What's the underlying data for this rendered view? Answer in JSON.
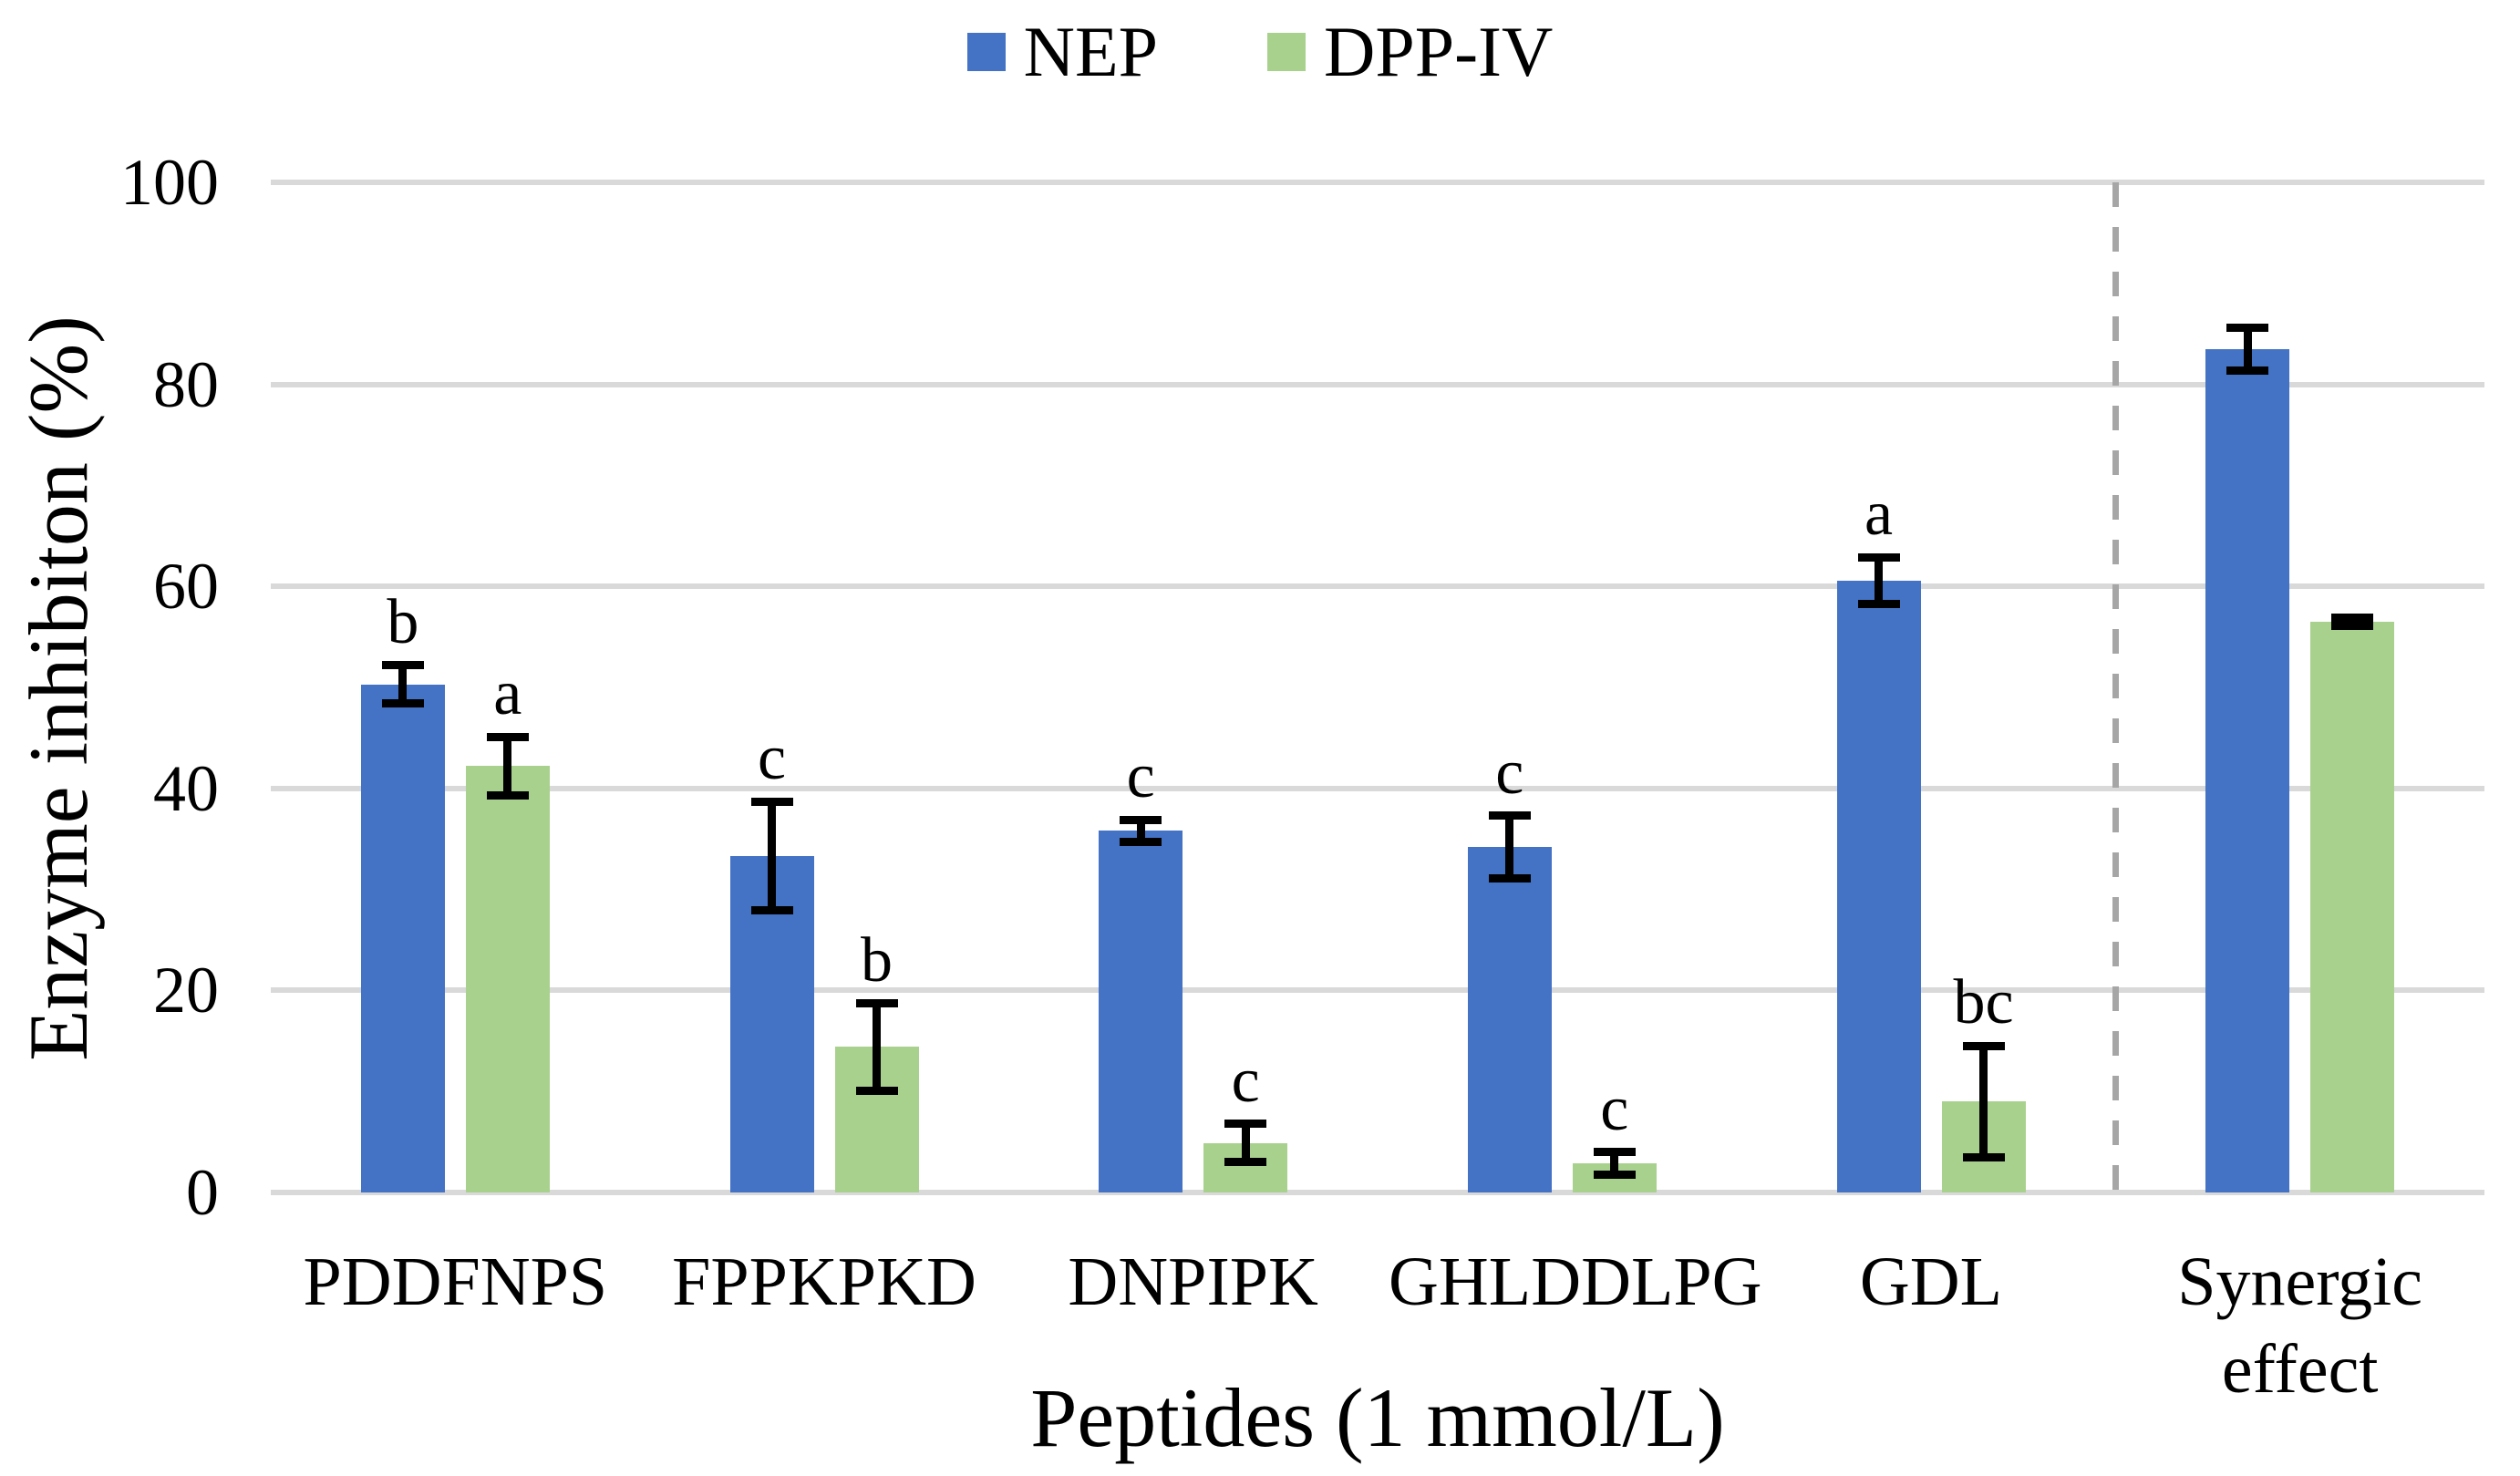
{
  "legend": {
    "items": [
      {
        "label": "NEP",
        "color": "#4472C4"
      },
      {
        "label": "DPP-IV",
        "color": "#A9D18E"
      }
    ]
  },
  "axes": {
    "y_title": "Enzyme inhibiton (%)",
    "x_title": "Peptides (1 mmol/L)",
    "y_ticks": [
      0,
      20,
      40,
      60,
      80,
      100
    ]
  },
  "chart_data": {
    "type": "bar",
    "title": "",
    "xlabel": "Peptides (1 mmol/L)",
    "ylabel": "Enzyme inhibiton (%)",
    "ylim": [
      0,
      100
    ],
    "grid": true,
    "legend_position": "top",
    "categories": [
      "PDDFNPS",
      "FPPKPKD",
      "DNPIPK",
      "GHLDDLPG",
      "GDL",
      "Synergic effect"
    ],
    "series": [
      {
        "name": "NEP",
        "color": "#4472C4",
        "values": [
          50.3,
          33.3,
          35.8,
          34.2,
          60.6,
          83.5
        ],
        "errors": [
          1.9,
          5.4,
          1.1,
          3.1,
          2.3,
          2.1
        ],
        "letters": [
          "b",
          "c",
          "c",
          "c",
          "a",
          ""
        ]
      },
      {
        "name": "DPP-IV",
        "color": "#A9D18E",
        "values": [
          42.2,
          14.4,
          4.9,
          2.9,
          9.0,
          56.5
        ],
        "errors": [
          2.9,
          4.3,
          1.9,
          1.1,
          5.5,
          0.4
        ],
        "letters": [
          "a",
          "b",
          "c",
          "c",
          "bc",
          ""
        ]
      }
    ],
    "separator": {
      "after_category": "GDL",
      "style": "dashed",
      "color": "#A6A6A6"
    },
    "gridline_color": "#D9D9D9"
  }
}
